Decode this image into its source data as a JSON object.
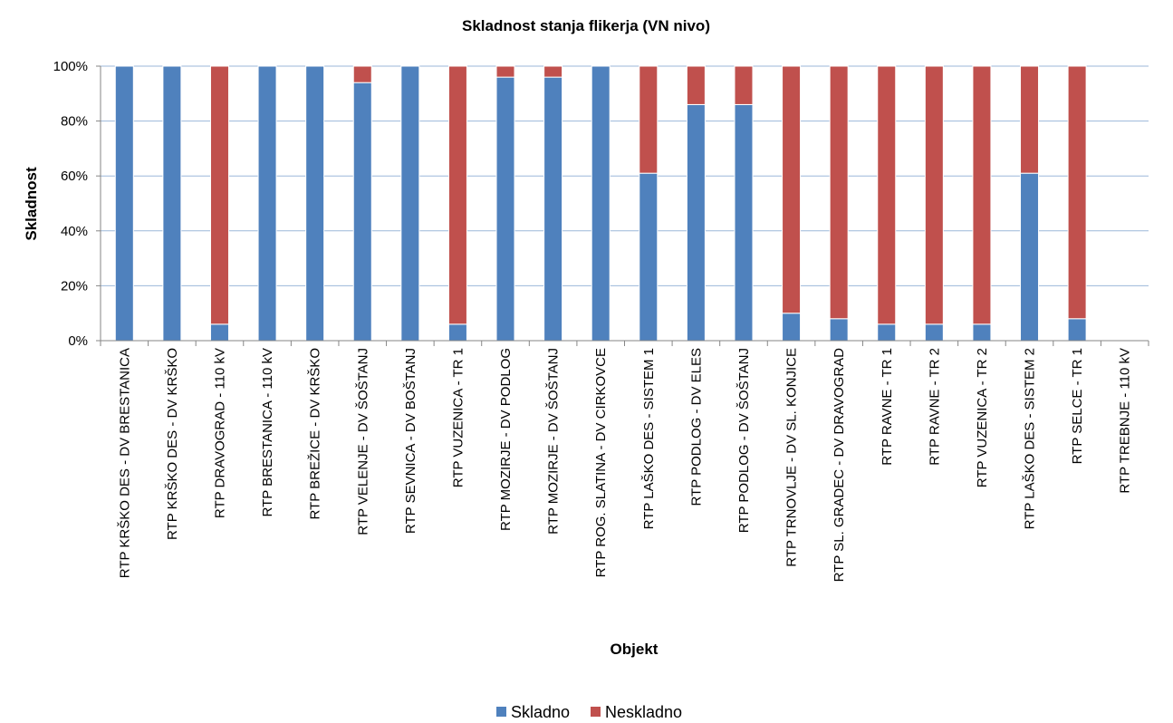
{
  "chart_data": {
    "type": "bar",
    "stacked": true,
    "title": "Skladnost stanja flikerja (VN nivo)",
    "xlabel": "Objekt",
    "ylabel": "Skladnost",
    "ylim": [
      0,
      100
    ],
    "yticks": [
      "0%",
      "20%",
      "40%",
      "60%",
      "80%",
      "100%"
    ],
    "ytick_values": [
      0,
      20,
      40,
      60,
      80,
      100
    ],
    "grid": true,
    "legend_position": "bottom",
    "categories": [
      "RTP KRŠKO DES - DV BRESTANICA",
      "RTP KRŠKO DES - DV KRŠKO",
      "RTP DRAVOGRAD - 110 kV",
      "RTP BRESTANICA - 110 kV",
      "RTP BREŽICE - DV KRŠKO",
      "RTP VELENJE - DV ŠOŠTANJ",
      "RTP SEVNICA - DV BOŠTANJ",
      "RTP VUZENICA - TR 1",
      "RTP MOZIRJE - DV PODLOG",
      "RTP MOZIRJE - DV ŠOŠTANJ",
      "RTP ROG. SLATINA - DV CIRKOVCE",
      "RTP LAŠKO DES - SISTEM 1",
      "RTP PODLOG - DV ELES",
      "RTP PODLOG - DV ŠOŠTANJ",
      "RTP TRNOVLJE - DV SL. KONJICE",
      "RTP SL. GRADEC - DV DRAVOGRAD",
      "RTP RAVNE - TR 1",
      "RTP RAVNE - TR 2",
      "RTP VUZENICA - TR 2",
      "RTP LAŠKO DES - SISTEM 2",
      "RTP SELCE - TR 1",
      "RTP TREBNJE - 110 kV"
    ],
    "series": [
      {
        "name": "Skladno",
        "color": "#4f81bd",
        "values": [
          100,
          100,
          6,
          100,
          100,
          94,
          100,
          6,
          96,
          96,
          100,
          61,
          86,
          86,
          10,
          8,
          6,
          6,
          6,
          61,
          8,
          0
        ]
      },
      {
        "name": "Neskladno",
        "color": "#c0504d",
        "values": [
          0,
          0,
          94,
          0,
          0,
          6,
          0,
          94,
          4,
          4,
          0,
          39,
          14,
          14,
          90,
          92,
          94,
          94,
          94,
          39,
          92,
          0
        ]
      }
    ]
  }
}
